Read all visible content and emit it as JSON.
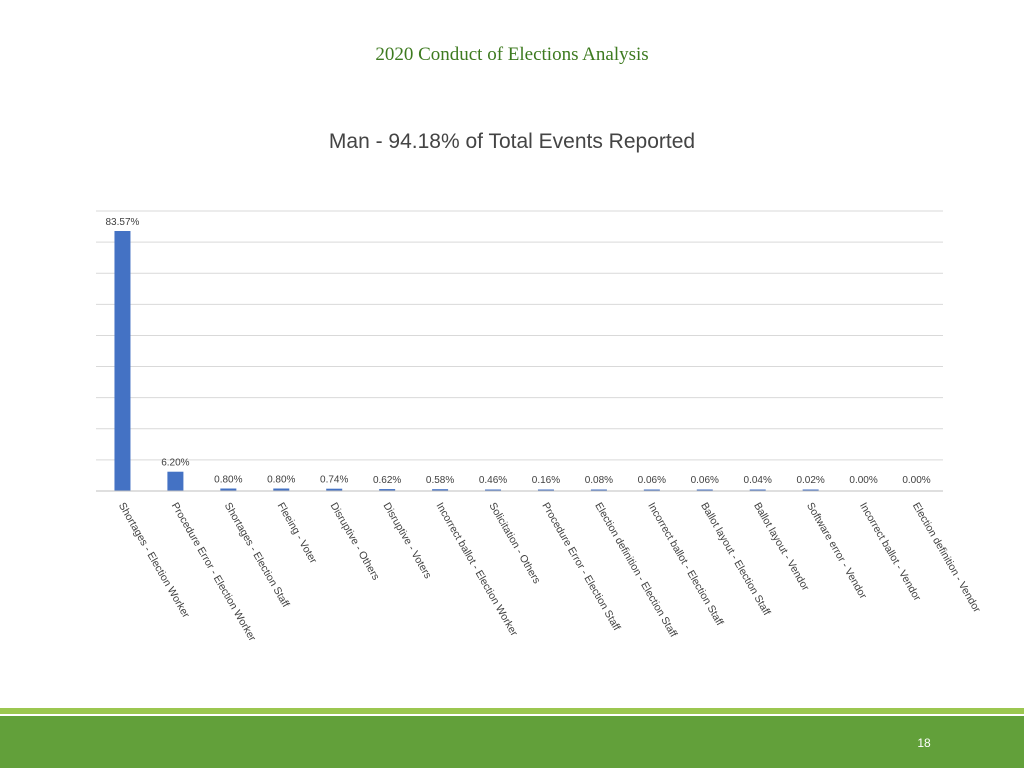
{
  "header": {
    "title": "2020 Conduct of Elections Analysis"
  },
  "footer": {
    "page_number": "18"
  },
  "chart_data": {
    "type": "bar",
    "title": "Man - 94.18% of Total Events Reported",
    "xlabel": "",
    "ylabel": "",
    "ylim": [
      0,
      90
    ],
    "grid": true,
    "categories": [
      "Shortages - Election Worker",
      "Procedure Error - Election Worker",
      "Shortages - Election Staff",
      "Fleeing - Voter",
      "Disruptive - Others",
      "Disruptive - Voters",
      "Incorrect ballot - Election Worker",
      "Solicitation - Others",
      "Procedure Error - Election Staff",
      "Election definition - Election Staff",
      "Incorrect ballot - Election Staff",
      "Ballot layout - Election Staff",
      "Ballot layout - Vendor",
      "Software error - Vendor",
      "Incorrect ballot - Vendor",
      "Election definition - Vendor"
    ],
    "values": [
      83.57,
      6.2,
      0.8,
      0.8,
      0.74,
      0.62,
      0.58,
      0.46,
      0.16,
      0.08,
      0.06,
      0.06,
      0.04,
      0.02,
      0.0,
      0.0
    ],
    "data_labels": [
      "83.57%",
      "6.20%",
      "0.80%",
      "0.80%",
      "0.74%",
      "0.62%",
      "0.58%",
      "0.46%",
      "0.16%",
      "0.08%",
      "0.06%",
      "0.06%",
      "0.04%",
      "0.02%",
      "0.00%",
      "0.00%"
    ],
    "bar_color": "#4472c4",
    "grid_color": "#d9d9d9"
  }
}
